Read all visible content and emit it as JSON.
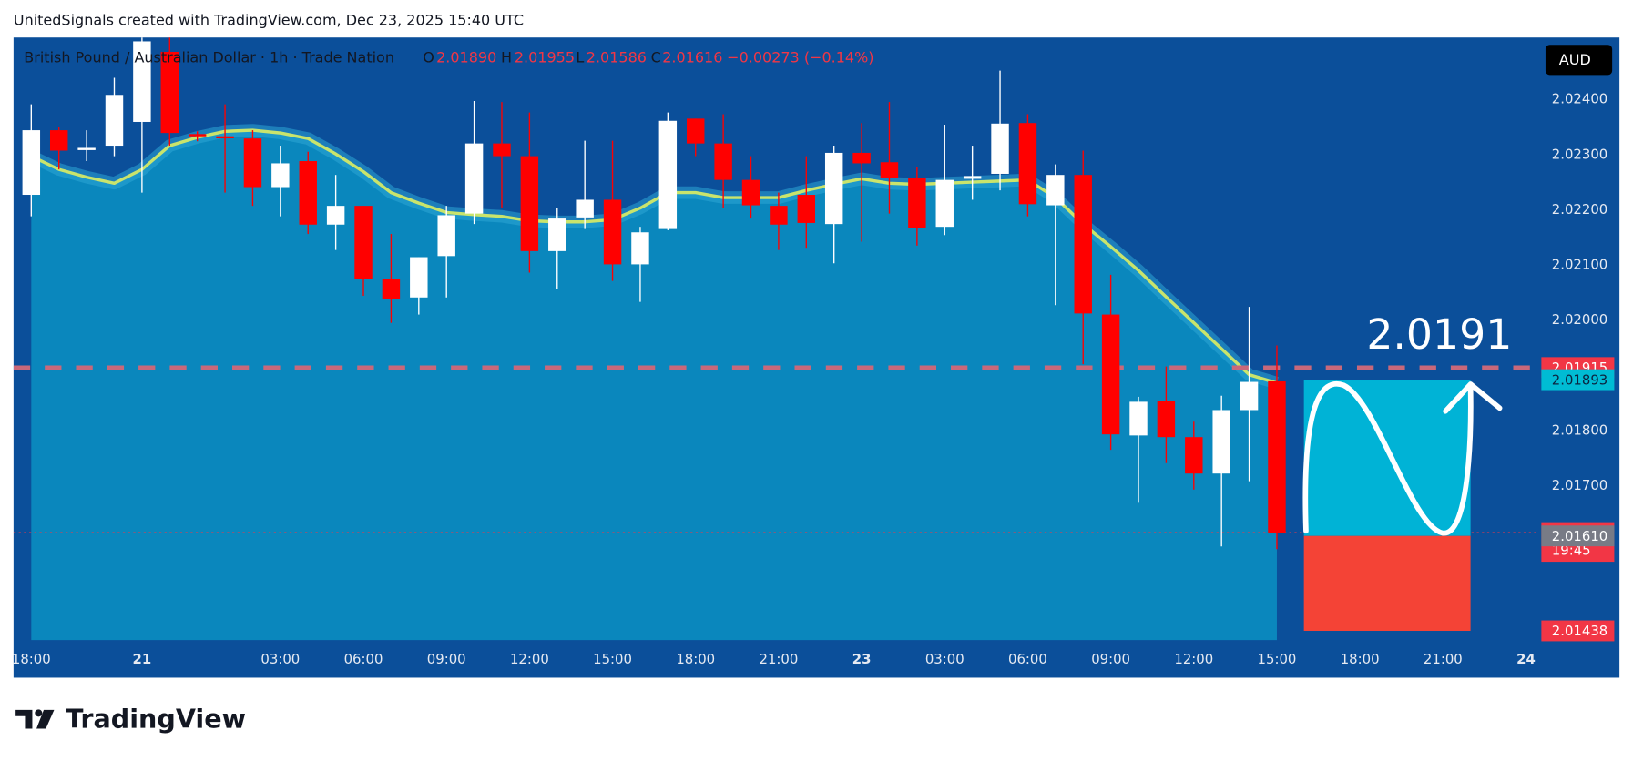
{
  "header": "UnitedSignals created with TradingView.com, Dec 23, 2025 15:40 UTC",
  "brand": "TradingView",
  "chart_data": {
    "type": "candlestick",
    "title": "British Pound / Australian Dollar · 1h · Trade Nation",
    "legend_values": [
      {
        "key": "O",
        "value": "2.01890"
      },
      {
        "key": "H",
        "value": "2.01955"
      },
      {
        "key": "L",
        "value": "2.01586"
      },
      {
        "key": "C",
        "value": "2.01616"
      }
    ],
    "change": "−0.00273 (−0.14%)",
    "currency": "AUD",
    "annotation": "2.0191",
    "up_color": "#ffffff",
    "down_color": "#ff0000",
    "open": [
      2.02228,
      2.02345,
      2.02309,
      2.02317,
      2.0236,
      2.02487,
      2.02338,
      2.02334,
      2.0233,
      2.02242,
      2.02289,
      2.02174,
      2.02208,
      2.02075,
      2.02042,
      2.02117,
      2.02194,
      2.02321,
      2.02298,
      2.02126,
      2.02187,
      2.02219,
      2.02102,
      2.02166,
      2.02366,
      2.02321,
      2.02255,
      2.02208,
      2.02228,
      2.02175,
      2.02304,
      2.02287,
      2.02258,
      2.0217,
      2.02257,
      2.02266,
      2.02358,
      2.02209,
      2.02264,
      2.02011,
      2.01792,
      2.01855,
      2.01789,
      2.01723,
      2.01838,
      2.0189
    ],
    "high": [
      2.02392,
      2.02351,
      2.02345,
      2.0244,
      2.02525,
      2.02513,
      2.02343,
      2.02392,
      2.02345,
      2.02317,
      2.02306,
      2.02264,
      2.02208,
      2.02157,
      2.02115,
      2.02208,
      2.02398,
      2.02396,
      2.02377,
      2.02204,
      2.02326,
      2.02326,
      2.0217,
      2.02377,
      2.02366,
      2.02374,
      2.02298,
      2.02232,
      2.02298,
      2.02317,
      2.02358,
      2.02396,
      2.02279,
      2.02355,
      2.02317,
      2.02453,
      2.02374,
      2.02283,
      2.02308,
      2.02083,
      2.01862,
      2.01917,
      2.01817,
      2.01864,
      2.02025,
      2.01955
    ],
    "low": [
      2.02189,
      2.02274,
      2.02289,
      2.02298,
      2.02232,
      2.02317,
      2.02325,
      2.02232,
      2.02208,
      2.02189,
      2.02157,
      2.02128,
      2.02045,
      2.01996,
      2.02011,
      2.02042,
      2.02175,
      2.02204,
      2.02087,
      2.02058,
      2.02166,
      2.02072,
      2.02034,
      2.02164,
      2.02298,
      2.02204,
      2.02185,
      2.02128,
      2.02132,
      2.02104,
      2.02143,
      2.02194,
      2.02136,
      2.02155,
      2.02219,
      2.02236,
      2.02189,
      2.02028,
      2.01921,
      2.01766,
      2.0167,
      2.01742,
      2.01694,
      2.01591,
      2.01709,
      2.01586
    ],
    "close": [
      2.02345,
      2.02308,
      2.02313,
      2.02409,
      2.02506,
      2.0234,
      2.02334,
      2.02332,
      2.02242,
      2.02285,
      2.02174,
      2.02208,
      2.02075,
      2.0204,
      2.02115,
      2.02191,
      2.02321,
      2.02298,
      2.02126,
      2.02185,
      2.02219,
      2.02102,
      2.0216,
      2.02362,
      2.02321,
      2.02255,
      2.02209,
      2.02174,
      2.02177,
      2.02304,
      2.02285,
      2.02258,
      2.02168,
      2.02255,
      2.02262,
      2.02357,
      2.02211,
      2.02264,
      2.02013,
      2.01794,
      2.01853,
      2.01789,
      2.01723,
      2.01838,
      2.01889,
      2.01616
    ],
    "moving_average": {
      "color": "#c9e46c",
      "area_color": "#0a87bd",
      "values": [
        2.02298,
        2.02274,
        2.0226,
        2.02249,
        2.02274,
        2.02317,
        2.02332,
        2.02343,
        2.02345,
        2.0234,
        2.0233,
        2.02302,
        2.0227,
        2.02232,
        2.02213,
        2.02196,
        2.02192,
        2.02189,
        2.02181,
        2.02179,
        2.02179,
        2.02183,
        2.02204,
        2.02232,
        2.02232,
        2.02223,
        2.02223,
        2.02223,
        2.02236,
        2.02247,
        2.02257,
        2.02249,
        2.02247,
        2.02249,
        2.02251,
        2.02253,
        2.02255,
        2.02223,
        2.02175,
        2.02134,
        2.02091,
        2.02043,
        2.01996,
        2.01949,
        2.01902,
        2.01887
      ]
    },
    "ylim": [
      2.01421,
      2.02513
    ],
    "yticks": [
      {
        "value": 2.024,
        "label": "2.02400"
      },
      {
        "value": 2.023,
        "label": "2.02300"
      },
      {
        "value": 2.022,
        "label": "2.02200"
      },
      {
        "value": 2.021,
        "label": "2.02100"
      },
      {
        "value": 2.02,
        "label": "2.02000"
      },
      {
        "value": 2.018,
        "label": "2.01800"
      },
      {
        "value": 2.017,
        "label": "2.01700"
      }
    ],
    "xlim": [
      -0.64,
      54.48
    ],
    "xticks": [
      {
        "value": 0,
        "label": "18:00"
      },
      {
        "value": 4,
        "label": "21"
      },
      {
        "value": 9,
        "label": "03:00"
      },
      {
        "value": 12,
        "label": "06:00"
      },
      {
        "value": 15,
        "label": "09:00"
      },
      {
        "value": 18,
        "label": "12:00"
      },
      {
        "value": 21,
        "label": "15:00"
      },
      {
        "value": 24,
        "label": "18:00"
      },
      {
        "value": 27,
        "label": "21:00"
      },
      {
        "value": 30,
        "label": "23"
      },
      {
        "value": 33,
        "label": "03:00"
      },
      {
        "value": 36,
        "label": "06:00"
      },
      {
        "value": 39,
        "label": "09:00"
      },
      {
        "value": 42,
        "label": "12:00"
      },
      {
        "value": 45,
        "label": "15:00"
      },
      {
        "value": 48,
        "label": "18:00"
      },
      {
        "value": 51,
        "label": "21:00"
      },
      {
        "value": 54,
        "label": "24"
      }
    ],
    "price_labels": [
      {
        "value": 2.01915,
        "color": "#f23645"
      },
      {
        "value": 2.01893,
        "color": "#00bcd4"
      },
      {
        "value": 2.01616,
        "sub": "19:45",
        "color": "#f23645"
      },
      {
        "value": 2.0161,
        "label": "2.01610",
        "color": "#787b86"
      },
      {
        "value": 2.01438,
        "color": "#f23645"
      }
    ],
    "target_color": "#00b3d6",
    "stop_color": "#f44336"
  }
}
